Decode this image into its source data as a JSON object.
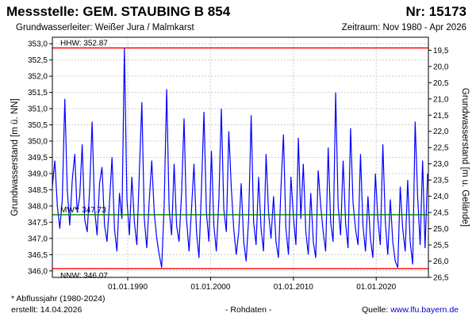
{
  "header": {
    "station": "Messstelle: GEM. STAUBING B 854",
    "number": "Nr: 15173",
    "aquifer": "Grundwasserleiter:  Weißer Jura / Malmkarst",
    "period": "Zeitraum: Nov 1980 - Apr 2026"
  },
  "footer": {
    "note": "* Abflussjahr (1980-2024)",
    "created": "erstellt:  14.04.2026",
    "rawdata": "- Rohdaten -",
    "source_label": "Quelle:",
    "source_url": "www.lfu.bayern.de"
  },
  "colors": {
    "line": "#0000ff",
    "hhw": "#ff0000",
    "nnw": "#ff0000",
    "mw": "#008000",
    "grid": "#cccccc"
  },
  "chart_data": {
    "type": "line",
    "title": "",
    "xlabel": "",
    "ylabel": "Grundwasserstand [m ü. NN]",
    "ylabel_right": "Grundwasserstand [m u. Gelände]",
    "xlim": [
      1980.9,
      2026.3
    ],
    "ylim": [
      345.8,
      353.2
    ],
    "ylim_right": [
      26.5,
      19.1
    ],
    "x_ticks": [
      1990,
      2000,
      2010,
      2020
    ],
    "x_tick_labels": [
      "01.01.1990",
      "01.01.2000",
      "01.01.2010",
      "01.01.2020"
    ],
    "y_ticks": [
      "346,0",
      "346,5",
      "347,0",
      "347,5",
      "348,0",
      "348,5",
      "349,0",
      "349,5",
      "350,0",
      "350,5",
      "351,0",
      "351,5",
      "352,0",
      "352,5",
      "353,0"
    ],
    "y_ticks_right": [
      "19,5",
      "20,0",
      "20,5",
      "21,0",
      "21,5",
      "22,0",
      "22,5",
      "23,0",
      "23,5",
      "24,0",
      "24,5",
      "25,0",
      "25,5",
      "26,0",
      "26,5"
    ],
    "grid": true,
    "reference_lines": [
      {
        "label": "HHW: 352.87",
        "value": 352.87
      },
      {
        "label": "MW*: 347.73",
        "value": 347.73
      },
      {
        "label": "NNW: 346.07",
        "value": 346.07
      }
    ],
    "series": [
      {
        "x": [
          1980.9,
          1981.2,
          1981.5,
          1981.8,
          1982.1,
          1982.4,
          1982.7,
          1983.0,
          1983.3,
          1983.6,
          1983.9,
          1984.2,
          1984.5,
          1984.8,
          1985.1,
          1985.4,
          1985.7,
          1986.0,
          1986.3,
          1986.6,
          1986.9,
          1987.2,
          1987.5,
          1987.8,
          1988.1,
          1988.4,
          1988.7,
          1989.0,
          1989.3,
          1989.6,
          1989.9,
          1990.2,
          1990.5,
          1990.8,
          1991.1,
          1991.4,
          1991.7,
          1992.0,
          1992.3,
          1992.6,
          1992.9,
          1993.2,
          1993.5,
          1993.8,
          1994.1,
          1994.4,
          1994.7,
          1995.0,
          1995.3,
          1995.6,
          1995.9,
          1996.2,
          1996.5,
          1996.8,
          1997.1,
          1997.4,
          1997.7,
          1998.0,
          1998.3,
          1998.6,
          1998.9,
          1999.2,
          1999.5,
          1999.8,
          2000.1,
          2000.4,
          2000.7,
          2001.0,
          2001.3,
          2001.6,
          2001.9,
          2002.2,
          2002.5,
          2002.8,
          2003.1,
          2003.4,
          2003.7,
          2004.0,
          2004.3,
          2004.6,
          2004.9,
          2005.2,
          2005.5,
          2005.8,
          2006.1,
          2006.4,
          2006.7,
          2007.0,
          2007.3,
          2007.6,
          2007.9,
          2008.2,
          2008.5,
          2008.8,
          2009.1,
          2009.4,
          2009.7,
          2010.0,
          2010.3,
          2010.6,
          2010.9,
          2011.2,
          2011.5,
          2011.8,
          2012.1,
          2012.4,
          2012.7,
          2013.0,
          2013.3,
          2013.6,
          2013.9,
          2014.2,
          2014.5,
          2014.8,
          2015.1,
          2015.4,
          2015.7,
          2016.0,
          2016.3,
          2016.6,
          2016.9,
          2017.2,
          2017.5,
          2017.8,
          2018.1,
          2018.4,
          2018.7,
          2019.0,
          2019.3,
          2019.6,
          2019.9,
          2020.2,
          2020.5,
          2020.8,
          2021.1,
          2021.4,
          2021.7,
          2022.0,
          2022.3,
          2022.6,
          2022.9,
          2023.2,
          2023.5,
          2023.8,
          2024.1,
          2024.4,
          2024.7,
          2025.0,
          2025.3,
          2025.6,
          2025.9,
          2026.2
        ],
        "y": [
          348.6,
          349.4,
          348.0,
          347.3,
          348.2,
          351.3,
          348.5,
          347.4,
          348.8,
          349.6,
          347.8,
          348.3,
          349.9,
          347.6,
          347.2,
          348.5,
          350.6,
          347.9,
          347.1,
          348.7,
          349.2,
          347.4,
          346.9,
          348.1,
          349.5,
          347.3,
          346.6,
          348.4,
          347.6,
          352.87,
          348.2,
          347.1,
          348.9,
          347.5,
          346.8,
          349.0,
          351.2,
          347.6,
          346.7,
          348.2,
          349.4,
          347.8,
          347.0,
          346.5,
          346.1,
          348.0,
          351.6,
          347.9,
          347.1,
          349.3,
          347.4,
          346.9,
          348.4,
          350.7,
          347.6,
          346.6,
          347.9,
          349.3,
          347.2,
          346.4,
          348.5,
          350.9,
          347.8,
          346.9,
          349.7,
          347.4,
          346.6,
          348.2,
          351.0,
          347.9,
          347.2,
          350.3,
          348.6,
          347.3,
          346.5,
          347.2,
          348.7,
          346.9,
          346.3,
          347.6,
          350.8,
          347.5,
          346.8,
          348.9,
          347.3,
          346.6,
          349.6,
          347.8,
          347.0,
          348.3,
          346.9,
          346.4,
          348.6,
          350.2,
          347.3,
          346.5,
          348.9,
          347.7,
          346.8,
          350.1,
          347.6,
          349.3,
          347.2,
          346.5,
          348.4,
          346.9,
          346.4,
          349.1,
          348.0,
          347.2,
          346.6,
          349.8,
          347.5,
          346.9,
          351.5,
          348.0,
          347.1,
          349.4,
          347.5,
          346.7,
          350.4,
          348.1,
          347.3,
          346.8,
          349.6,
          347.4,
          346.6,
          348.3,
          347.0,
          346.4,
          349.0,
          347.6,
          346.8,
          349.9,
          347.5,
          346.5,
          348.2,
          346.9,
          346.3,
          346.1,
          348.6,
          347.3,
          346.6,
          348.8,
          346.9,
          346.2,
          350.6,
          348.3,
          346.8,
          349.4,
          346.7,
          349.0
        ]
      }
    ]
  }
}
